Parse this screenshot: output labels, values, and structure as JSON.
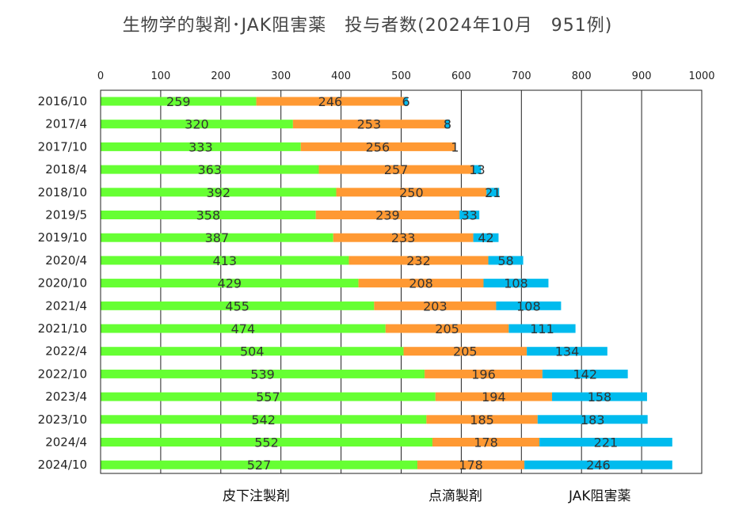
{
  "title": "生物学的製剤･JAK阻害薬　投与者数(2024年10月　951例)",
  "legend": [
    "皮下注製剤",
    "点滴製剤",
    "JAK阻害薬"
  ],
  "colors": {
    "sc": "#66ff33",
    "iv": "#ff9933",
    "jak": "#00bbee"
  },
  "chart_data": {
    "type": "bar",
    "orientation": "horizontal",
    "stacked": true,
    "categories": [
      "2016/10",
      "2017/4",
      "2017/10",
      "2018/4",
      "2018/10",
      "2019/5",
      "2019/10",
      "2020/4",
      "2020/10",
      "2021/4",
      "2021/10",
      "2022/4",
      "2022/10",
      "2023/4",
      "2023/10",
      "2024/4",
      "2024/10"
    ],
    "series": [
      {
        "name": "皮下注製剤",
        "color": "#66ff33",
        "values": [
          259,
          320,
          333,
          363,
          392,
          358,
          387,
          413,
          429,
          455,
          474,
          504,
          539,
          557,
          542,
          552,
          527
        ]
      },
      {
        "name": "点滴製剤",
        "color": "#ff9933",
        "values": [
          246,
          253,
          256,
          257,
          250,
          239,
          233,
          232,
          208,
          203,
          205,
          205,
          196,
          194,
          185,
          178,
          178
        ]
      },
      {
        "name": "JAK阻害薬",
        "color": "#00bbee",
        "values": [
          6,
          8,
          1,
          13,
          21,
          33,
          42,
          58,
          108,
          108,
          111,
          134,
          142,
          158,
          183,
          221,
          246
        ]
      }
    ],
    "xlim": [
      0,
      1000
    ],
    "xticks": [
      0,
      100,
      200,
      300,
      400,
      500,
      600,
      700,
      800,
      900,
      1000
    ],
    "grid": true,
    "legend_position": "bottom"
  }
}
